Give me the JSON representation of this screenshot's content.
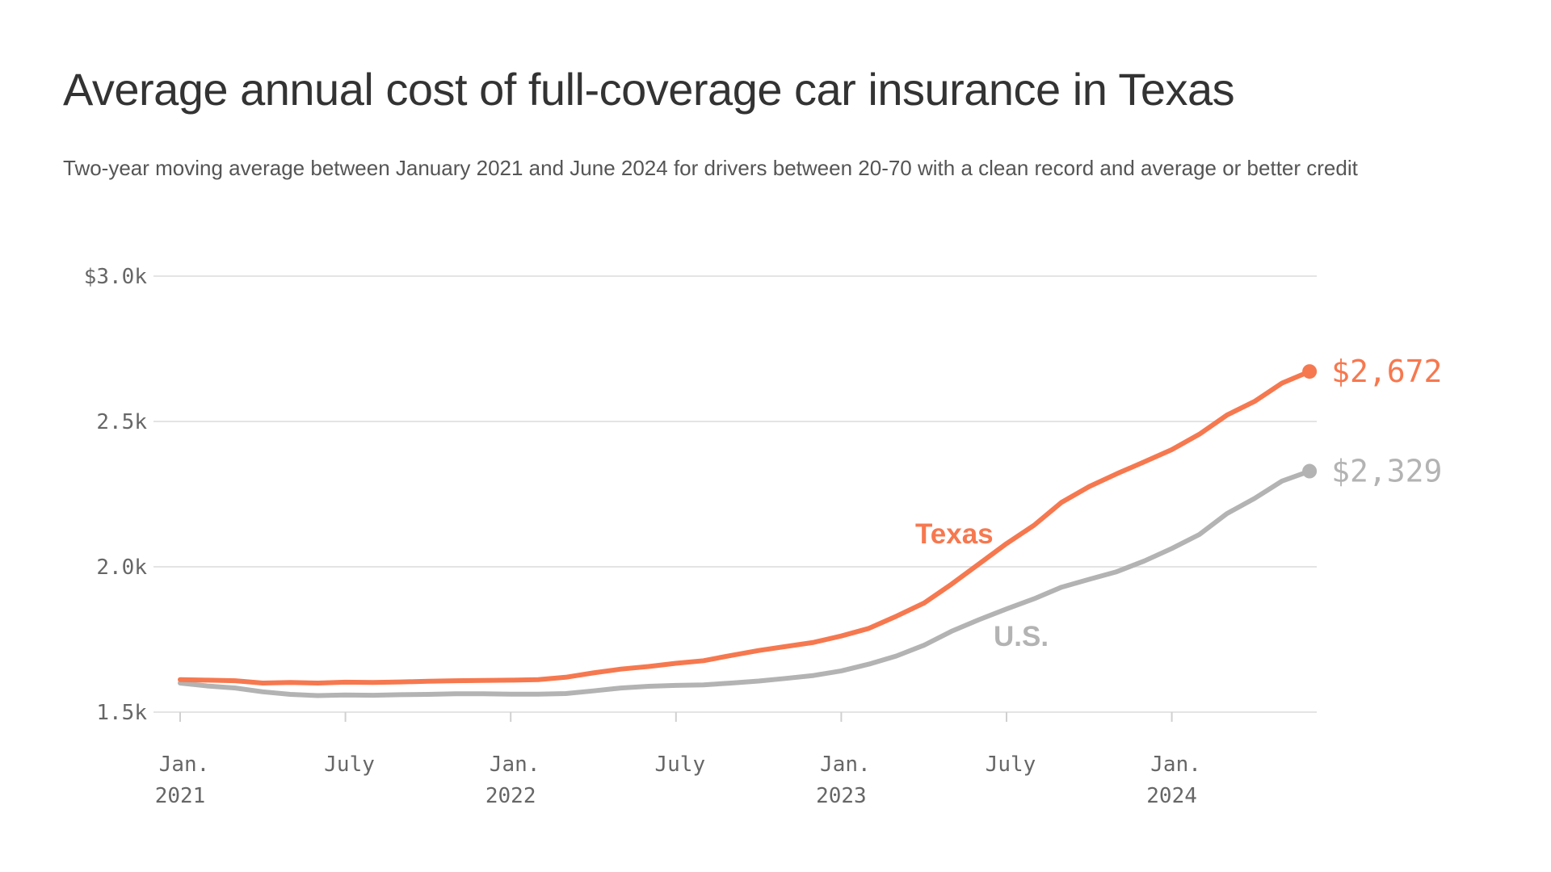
{
  "title": "Average annual cost of full-coverage car insurance in Texas",
  "subtitle": "Two-year moving average between January 2021 and June 2024 for drivers between 20-70 with a clean record and average or better credit",
  "colors": {
    "texas": "#f6784f",
    "us": "#b3b3b3",
    "grid": "#e4e4e4",
    "axis_text": "#666666"
  },
  "chart_data": {
    "type": "line",
    "title": "Average annual cost of full-coverage car insurance in Texas",
    "xlabel": "",
    "ylabel": "",
    "ylim": [
      1500,
      3000
    ],
    "yticks": [
      {
        "value": 3000,
        "label": "$3.0k"
      },
      {
        "value": 2500,
        "label": "2.5k"
      },
      {
        "value": 2000,
        "label": "2.0k"
      },
      {
        "value": 1500,
        "label": "1.5k"
      }
    ],
    "xlim": [
      0,
      42
    ],
    "xticks": [
      {
        "value": 0,
        "label1": "Jan.",
        "label2": "2021"
      },
      {
        "value": 6,
        "label1": "July",
        "label2": ""
      },
      {
        "value": 12,
        "label1": "Jan.",
        "label2": "2022"
      },
      {
        "value": 18,
        "label1": "July",
        "label2": ""
      },
      {
        "value": 24,
        "label1": "Jan.",
        "label2": "2023"
      },
      {
        "value": 30,
        "label1": "July",
        "label2": ""
      },
      {
        "value": 36,
        "label1": "Jan.",
        "label2": "2024"
      }
    ],
    "x": [
      0,
      1,
      2,
      3,
      4,
      5,
      6,
      7,
      8,
      9,
      10,
      11,
      12,
      13,
      14,
      15,
      16,
      17,
      18,
      19,
      20,
      21,
      22,
      23,
      24,
      25,
      26,
      27,
      28,
      29,
      30,
      31,
      32,
      33,
      34,
      35,
      36,
      37,
      38,
      39,
      40,
      41
    ],
    "series": [
      {
        "name": "Texas",
        "label": "Texas",
        "end_label": "$2,672",
        "color": "#f6784f",
        "values": [
          1612,
          1610,
          1608,
          1600,
          1602,
          1600,
          1603,
          1602,
          1604,
          1606,
          1608,
          1609,
          1610,
          1612,
          1620,
          1635,
          1648,
          1657,
          1668,
          1677,
          1695,
          1712,
          1726,
          1740,
          1762,
          1788,
          1830,
          1875,
          1940,
          2010,
          2080,
          2143,
          2222,
          2276,
          2320,
          2361,
          2403,
          2456,
          2522,
          2569,
          2632,
          2672
        ]
      },
      {
        "name": "U.S.",
        "label": "U.S.",
        "end_label": "$2,329",
        "color": "#b3b3b3",
        "values": [
          1600,
          1590,
          1583,
          1570,
          1561,
          1557,
          1559,
          1558,
          1560,
          1561,
          1563,
          1563,
          1562,
          1562,
          1564,
          1573,
          1583,
          1589,
          1592,
          1594,
          1600,
          1607,
          1616,
          1626,
          1642,
          1665,
          1693,
          1730,
          1778,
          1818,
          1855,
          1890,
          1930,
          1957,
          1983,
          2020,
          2063,
          2111,
          2183,
          2235,
          2295,
          2329
        ]
      }
    ]
  }
}
